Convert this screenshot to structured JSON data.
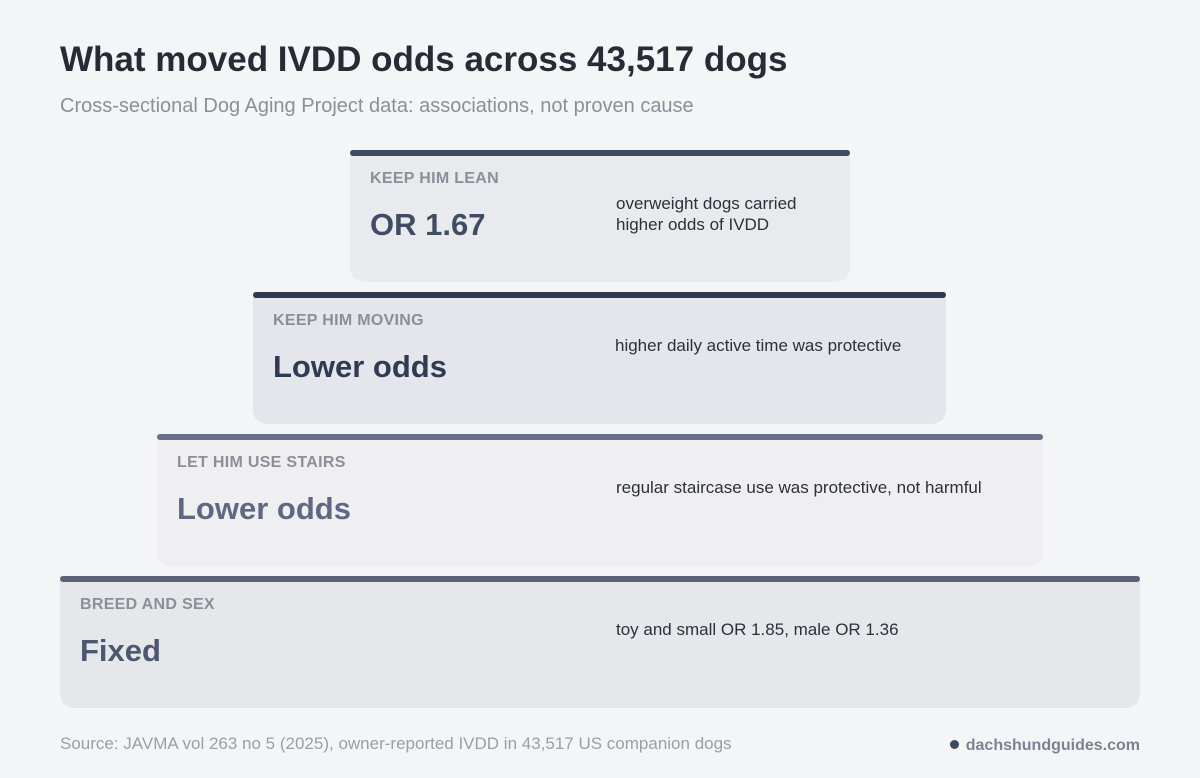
{
  "header": {
    "title": "What moved IVDD odds across 43,517 dogs",
    "subtitle": "Cross-sectional Dog Aging Project data: associations, not proven cause"
  },
  "tiers": [
    {
      "label": "KEEP HIM LEAN",
      "value": "OR 1.67",
      "note": "overweight dogs carried higher odds of IVDD"
    },
    {
      "label": "KEEP HIM MOVING",
      "value": "Lower odds",
      "note": "higher daily active time was protective"
    },
    {
      "label": "LET HIM USE STAIRS",
      "value": "Lower odds",
      "note": "regular staircase use was protective, not harmful"
    },
    {
      "label": "BREED AND SEX",
      "value": "Fixed",
      "note": "toy and small OR 1.85, male OR 1.36"
    }
  ],
  "footer": {
    "source": "Source: JAVMA vol 263 no 5 (2025), owner-reported IVDD in 43,517 US companion dogs",
    "brand": "dachshundguides.com"
  }
}
